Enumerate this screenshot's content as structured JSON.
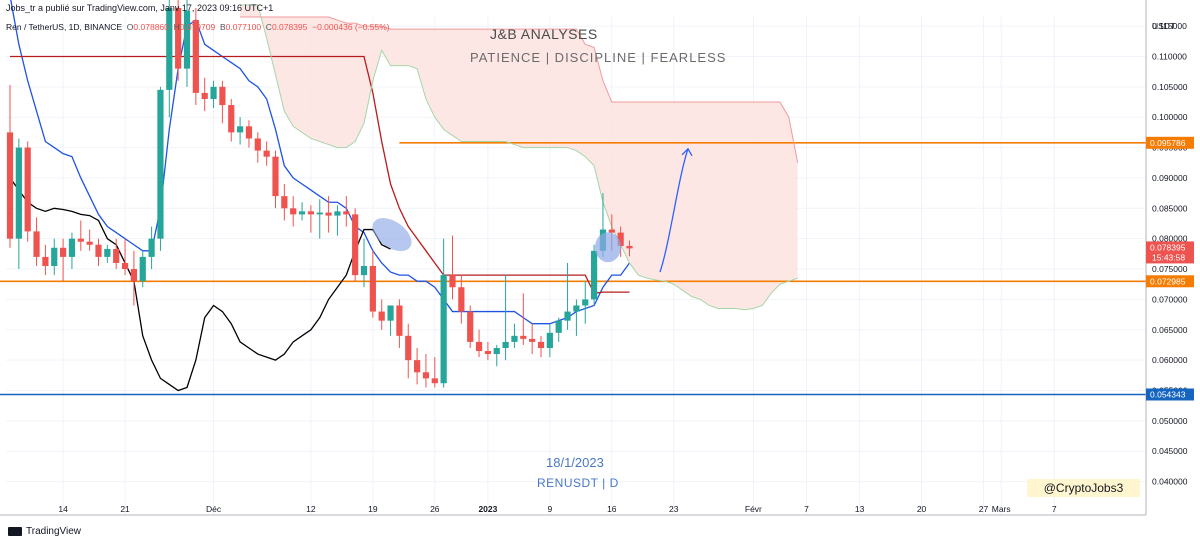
{
  "header": {
    "published": "Jobs_tr a publié sur TradingView.com, Janv 17, 2023 09:16 UTC+1",
    "symbol_line": "Ren / TetherUS, 1D, BINANCE",
    "o_label": "O",
    "o": "0.078860",
    "h_label": "H",
    "h": "0.079709",
    "b_label": "B",
    "b": "0.077100",
    "c_label": "C",
    "c": "0.078395",
    "change": "−0.000436 (−0.55%)"
  },
  "watermark": {
    "title": "J&B ANALYSES",
    "subtitle": "PATIENCE  |  DISCIPLINE  |  FEARLESS"
  },
  "annotations": {
    "date": "18/1/2023",
    "pair": "RENUSDT  |  D",
    "handle": "@CryptoJobs3"
  },
  "footer": {
    "brand": "TradingView"
  },
  "colors": {
    "up": "#26a69a",
    "down": "#ef5350",
    "tenkan": "#1e53e5",
    "kijun": "#b71c1c",
    "chikou": "#000000",
    "span_a": "#a5d6a7",
    "span_b": "#ef9a9a",
    "cloud": "#fde3e1",
    "orange": "#f57c00",
    "support": "#1565c0",
    "price_tag": "#ef5350",
    "ellipse": "#8fa9e8"
  },
  "chart_data": {
    "type": "candlestick",
    "interval": "1D",
    "ylim": [
      0.0345,
      0.1165
    ],
    "y_axis_title": "USDT",
    "y_ticks": [
      "0.115000",
      "0.110000",
      "0.105000",
      "0.100000",
      "0.095000",
      "0.090000",
      "0.085000",
      "0.080000",
      "0.075000",
      "0.070000",
      "0.065000",
      "0.060000",
      "0.055000",
      "0.050000",
      "0.045000",
      "0.040000"
    ],
    "x_ticks": [
      {
        "label": "14",
        "idx": 6
      },
      {
        "label": "21",
        "idx": 13
      },
      {
        "label": "Déc",
        "idx": 23
      },
      {
        "label": "12",
        "idx": 34
      },
      {
        "label": "19",
        "idx": 41
      },
      {
        "label": "26",
        "idx": 48
      },
      {
        "label": "2023",
        "idx": 54
      },
      {
        "label": "9",
        "idx": 61
      },
      {
        "label": "16",
        "idx": 68
      },
      {
        "label": "23",
        "idx": 75
      },
      {
        "label": "Févr",
        "idx": 84
      },
      {
        "label": "7",
        "idx": 90
      },
      {
        "label": "13",
        "idx": 96
      },
      {
        "label": "20",
        "idx": 103
      },
      {
        "label": "27",
        "idx": 110
      },
      {
        "label": "Mars",
        "idx": 112
      },
      {
        "label": "7",
        "idx": 118
      }
    ],
    "candles": [
      [
        0.0975,
        0.1053,
        0.0785,
        0.08
      ],
      [
        0.08,
        0.0965,
        0.075,
        0.095
      ],
      [
        0.095,
        0.096,
        0.0795,
        0.0812
      ],
      [
        0.0812,
        0.0835,
        0.0755,
        0.077
      ],
      [
        0.077,
        0.079,
        0.074,
        0.0755
      ],
      [
        0.0755,
        0.08,
        0.074,
        0.0785
      ],
      [
        0.0785,
        0.08,
        0.073,
        0.077
      ],
      [
        0.077,
        0.081,
        0.075,
        0.08
      ],
      [
        0.08,
        0.083,
        0.078,
        0.0795
      ],
      [
        0.0795,
        0.0815,
        0.078,
        0.079
      ],
      [
        0.079,
        0.08,
        0.0755,
        0.077
      ],
      [
        0.077,
        0.079,
        0.076,
        0.0783
      ],
      [
        0.0783,
        0.08,
        0.075,
        0.076
      ],
      [
        0.076,
        0.08,
        0.074,
        0.075
      ],
      [
        0.075,
        0.078,
        0.069,
        0.073
      ],
      [
        0.073,
        0.078,
        0.072,
        0.077
      ],
      [
        0.077,
        0.082,
        0.075,
        0.08
      ],
      [
        0.08,
        0.105,
        0.078,
        0.1045
      ],
      [
        0.1045,
        0.12,
        0.1,
        0.118
      ],
      [
        0.118,
        0.12,
        0.106,
        0.108
      ],
      [
        0.108,
        0.12,
        0.105,
        0.1175
      ],
      [
        0.116,
        0.118,
        0.102,
        0.104
      ],
      [
        0.104,
        0.1065,
        0.101,
        0.103
      ],
      [
        0.103,
        0.106,
        0.1015,
        0.105
      ],
      [
        0.105,
        0.106,
        0.099,
        0.102
      ],
      [
        0.102,
        0.103,
        0.096,
        0.0975
      ],
      [
        0.0975,
        0.1,
        0.0955,
        0.0985
      ],
      [
        0.0985,
        0.0995,
        0.095,
        0.0965
      ],
      [
        0.0965,
        0.0975,
        0.0925,
        0.0945
      ],
      [
        0.0945,
        0.096,
        0.092,
        0.0935
      ],
      [
        0.0935,
        0.0945,
        0.085,
        0.087
      ],
      [
        0.087,
        0.089,
        0.083,
        0.085
      ],
      [
        0.085,
        0.087,
        0.082,
        0.084
      ],
      [
        0.084,
        0.086,
        0.083,
        0.0845
      ],
      [
        0.0845,
        0.0855,
        0.081,
        0.084
      ],
      [
        0.084,
        0.0865,
        0.08,
        0.0843
      ],
      [
        0.0843,
        0.087,
        0.081,
        0.0838
      ],
      [
        0.0838,
        0.0855,
        0.0805,
        0.0845
      ],
      [
        0.0845,
        0.087,
        0.082,
        0.084
      ],
      [
        0.084,
        0.085,
        0.073,
        0.074
      ],
      [
        0.074,
        0.08,
        0.072,
        0.0755
      ],
      [
        0.0755,
        0.078,
        0.067,
        0.068
      ],
      [
        0.068,
        0.07,
        0.065,
        0.0665
      ],
      [
        0.0665,
        0.069,
        0.064,
        0.069
      ],
      [
        0.069,
        0.07,
        0.062,
        0.064
      ],
      [
        0.064,
        0.066,
        0.057,
        0.06
      ],
      [
        0.06,
        0.062,
        0.056,
        0.058
      ],
      [
        0.058,
        0.061,
        0.0555,
        0.057
      ],
      [
        0.057,
        0.0605,
        0.0555,
        0.0562
      ],
      [
        0.0562,
        0.08,
        0.0555,
        0.074
      ],
      [
        0.074,
        0.0805,
        0.07,
        0.072
      ],
      [
        0.072,
        0.074,
        0.066,
        0.068
      ],
      [
        0.068,
        0.069,
        0.062,
        0.063
      ],
      [
        0.063,
        0.065,
        0.0605,
        0.0615
      ],
      [
        0.0615,
        0.063,
        0.06,
        0.061
      ],
      [
        0.061,
        0.0625,
        0.059,
        0.062
      ],
      [
        0.062,
        0.074,
        0.06,
        0.063
      ],
      [
        0.063,
        0.066,
        0.062,
        0.064
      ],
      [
        0.064,
        0.071,
        0.0625,
        0.0635
      ],
      [
        0.0635,
        0.066,
        0.061,
        0.063
      ],
      [
        0.063,
        0.064,
        0.0605,
        0.062
      ],
      [
        0.062,
        0.066,
        0.0605,
        0.0645
      ],
      [
        0.0645,
        0.067,
        0.063,
        0.0665
      ],
      [
        0.0665,
        0.076,
        0.065,
        0.068
      ],
      [
        0.068,
        0.07,
        0.064,
        0.069
      ],
      [
        0.069,
        0.073,
        0.066,
        0.07
      ],
      [
        0.07,
        0.079,
        0.069,
        0.078
      ],
      [
        0.078,
        0.0875,
        0.077,
        0.0815
      ],
      [
        0.0815,
        0.084,
        0.078,
        0.081
      ],
      [
        0.081,
        0.082,
        0.077,
        0.0788
      ],
      [
        0.0788,
        0.0797,
        0.0771,
        0.0784
      ]
    ],
    "series": [
      {
        "name": "Tenkan",
        "color": "#1e53e5",
        "x_offset": 0,
        "values": [
          0.12,
          0.112,
          0.106,
          0.101,
          0.096,
          0.095,
          0.094,
          0.0935,
          0.09,
          0.087,
          0.084,
          0.082,
          0.081,
          0.08,
          0.079,
          0.078,
          0.078,
          0.085,
          0.098,
          0.108,
          0.115,
          0.116,
          0.112,
          0.111,
          0.11,
          0.109,
          0.108,
          0.106,
          0.105,
          0.103,
          0.098,
          0.092,
          0.09,
          0.089,
          0.088,
          0.087,
          0.086,
          0.086,
          0.085,
          0.082,
          0.081,
          0.078,
          0.076,
          0.0745,
          0.074,
          0.074,
          0.073,
          0.073,
          0.072,
          0.07,
          0.068,
          0.068,
          0.068,
          0.068,
          0.068,
          0.068,
          0.068,
          0.068,
          0.067,
          0.066,
          0.066,
          0.066,
          0.0665,
          0.067,
          0.068,
          0.0685,
          0.069,
          0.072,
          0.074,
          0.074,
          0.076
        ]
      },
      {
        "name": "Kijun",
        "color": "#b71c1c",
        "x_offset": 0,
        "values": [
          0.11,
          0.11,
          0.11,
          0.11,
          0.11,
          0.11,
          0.11,
          0.11,
          0.11,
          0.11,
          0.11,
          0.11,
          0.11,
          0.11,
          0.11,
          0.11,
          0.11,
          0.11,
          0.11,
          0.11,
          0.11,
          0.11,
          0.11,
          0.11,
          0.11,
          0.11,
          0.11,
          0.11,
          0.11,
          0.11,
          0.11,
          0.11,
          0.11,
          0.11,
          0.11,
          0.11,
          0.11,
          0.11,
          0.11,
          0.11,
          0.11,
          0.104,
          0.096,
          0.089,
          0.085,
          0.082,
          0.08,
          0.078,
          0.076,
          0.074,
          0.074,
          0.074,
          0.074,
          0.074,
          0.074,
          0.074,
          0.074,
          0.074,
          0.074,
          0.074,
          0.074,
          0.074,
          0.074,
          0.074,
          0.074,
          0.074,
          0.071,
          0.0712,
          0.0712,
          0.0712,
          0.0712
        ]
      },
      {
        "name": "Chikou",
        "color": "#000000",
        "x_offset": 0,
        "values": [
          0.09,
          0.088,
          0.086,
          0.085,
          0.0845,
          0.085,
          0.0848,
          0.0845,
          0.084,
          0.0838,
          0.083,
          0.08,
          0.079,
          0.076,
          0.073,
          0.064,
          0.06,
          0.057,
          0.056,
          0.055,
          0.0555,
          0.06,
          0.067,
          0.069,
          0.068,
          0.066,
          0.063,
          0.062,
          0.061,
          0.0605,
          0.06,
          0.061,
          0.063,
          0.064,
          0.065,
          0.067,
          0.07,
          0.072,
          0.074,
          0.078,
          0.0815,
          0.0815,
          0.079,
          0.0783
        ]
      },
      {
        "name": "Senkou A",
        "color": "#a5d6a7",
        "x_offset": 26,
        "values": [
          0.1185,
          0.1185,
          0.1185,
          0.113,
          0.107,
          0.101,
          0.0985,
          0.0975,
          0.0965,
          0.096,
          0.0955,
          0.095,
          0.095,
          0.096,
          0.099,
          0.106,
          0.111,
          0.1085,
          0.1085,
          0.1085,
          0.108,
          0.103,
          0.1,
          0.098,
          0.097,
          0.096,
          0.096,
          0.096,
          0.096,
          0.096,
          0.096,
          0.0955,
          0.095,
          0.095,
          0.095,
          0.095,
          0.095,
          0.095,
          0.0945,
          0.0935,
          0.092,
          0.086,
          0.082,
          0.079,
          0.076,
          0.074,
          0.0735,
          0.0732,
          0.073,
          0.0725,
          0.0715,
          0.0705,
          0.07,
          0.069,
          0.0685,
          0.0685,
          0.0685,
          0.0683,
          0.0685,
          0.069,
          0.071,
          0.0725,
          0.073,
          0.0735
        ]
      },
      {
        "name": "Senkou B",
        "color": "#ef9a9a",
        "x_offset": 26,
        "values": [
          0.1165,
          0.1165,
          0.1165,
          0.1165,
          0.1165,
          0.1165,
          0.1165,
          0.1165,
          0.1165,
          0.1165,
          0.1165,
          0.116,
          0.1155,
          0.1155,
          0.115,
          0.115,
          0.115,
          0.1145,
          0.1145,
          0.1145,
          0.1145,
          0.1145,
          0.1145,
          0.1145,
          0.1145,
          0.1145,
          0.1145,
          0.1145,
          0.1145,
          0.1145,
          0.1145,
          0.1145,
          0.1145,
          0.1145,
          0.1145,
          0.1145,
          0.1145,
          0.1145,
          0.1145,
          0.112,
          0.1115,
          0.106,
          0.1025,
          0.1025,
          0.1025,
          0.1025,
          0.1025,
          0.1025,
          0.1025,
          0.1025,
          0.1025,
          0.1025,
          0.1025,
          0.1025,
          0.1025,
          0.1025,
          0.1025,
          0.1025,
          0.1025,
          0.1025,
          0.1025,
          0.1025,
          0.1,
          0.0925
        ]
      }
    ],
    "levels": [
      {
        "value": 0.095786,
        "label": "0.095786",
        "color": "#f57c00",
        "from_idx": 44
      },
      {
        "value": 0.072985,
        "label": "0.072985",
        "color": "#f57c00",
        "from_idx": 0
      },
      {
        "value": 0.054343,
        "label": "0.054343",
        "color": "#1565c0",
        "from_idx": 0
      }
    ],
    "last_price": {
      "value": 0.078395,
      "label": "0.078395",
      "countdown": "15:43:58"
    },
    "projection": [
      [
        0.0745,
        0.095786
      ]
    ],
    "highlights": [
      {
        "idx": 49,
        "value": 0.0815,
        "note": "tenkan-chikou"
      },
      {
        "idx": 79,
        "value": 0.0781,
        "note": "price"
      }
    ]
  }
}
